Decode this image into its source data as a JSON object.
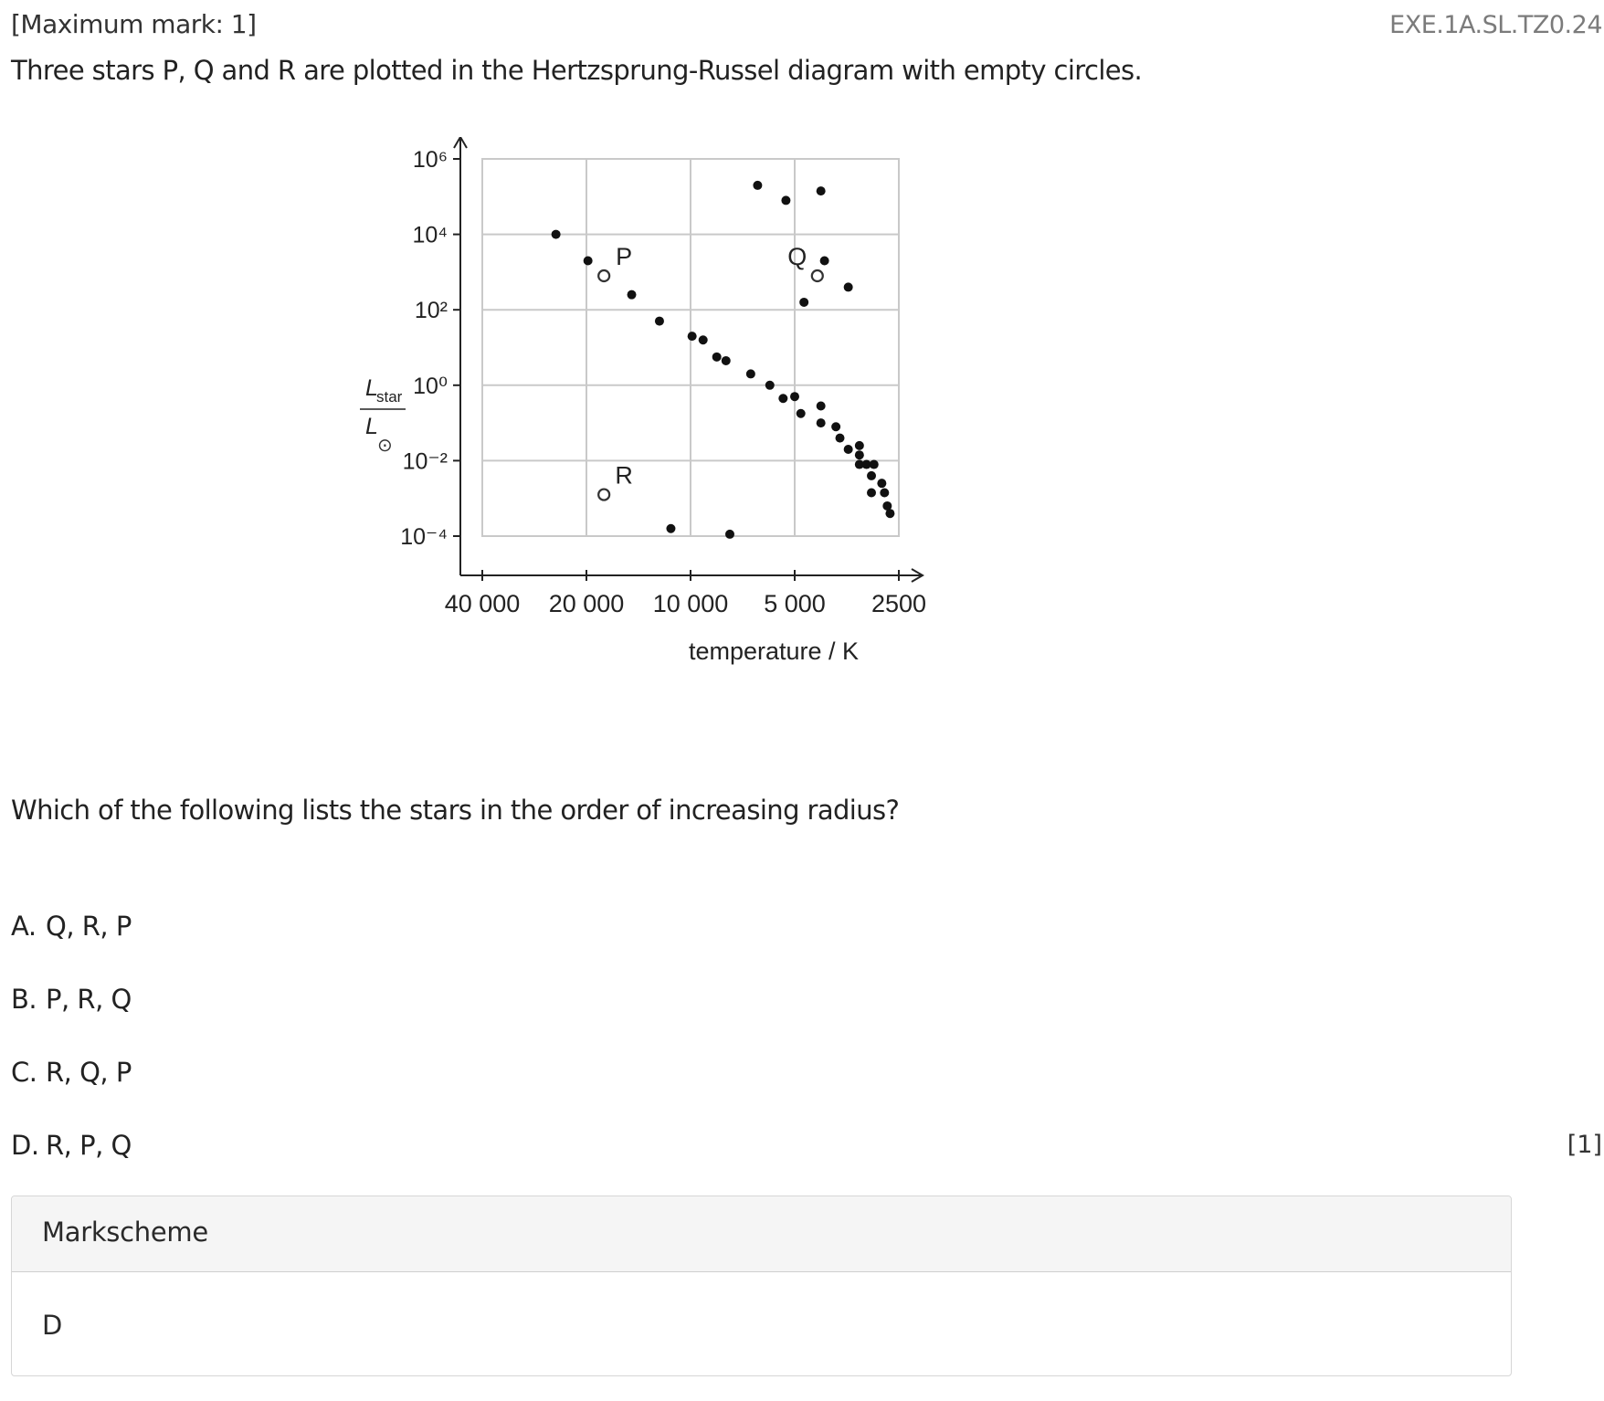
{
  "header": {
    "max_mark": "[Maximum mark: 1]",
    "code": "EXE.1A.SL.TZ0.24"
  },
  "stem": "Three stars P, Q and R are plotted in the Hertzsprung-Russel diagram with empty circles.",
  "question": "Which of the following lists the stars in the order of increasing radius?",
  "options": [
    {
      "letter": "A.",
      "text": "Q, R, P"
    },
    {
      "letter": "B.",
      "text": "P, R, Q"
    },
    {
      "letter": "C.",
      "text": "R, Q, P"
    },
    {
      "letter": "D.",
      "text": "R, P, Q"
    }
  ],
  "marks": "[1]",
  "markscheme": {
    "title": "Markscheme",
    "answer": "D"
  },
  "chart_data": {
    "type": "scatter",
    "xlabel": "temperature / K",
    "ylabel": {
      "numerator": "L",
      "numerator_sub": "star",
      "denominator": "L",
      "denominator_sub": "⊙"
    },
    "x_scale": "log, decreasing",
    "y_scale": "log",
    "x_ticks": [
      {
        "value": 40000,
        "label": "40 000"
      },
      {
        "value": 20000,
        "label": "20 000"
      },
      {
        "value": 10000,
        "label": "10 000"
      },
      {
        "value": 5000,
        "label": "5 000"
      },
      {
        "value": 2500,
        "label": "2500"
      }
    ],
    "y_ticks": [
      {
        "exp": 6,
        "label": "10⁶"
      },
      {
        "exp": 4,
        "label": "10⁴"
      },
      {
        "exp": 2,
        "label": "10²"
      },
      {
        "exp": 0,
        "label": "10⁰"
      },
      {
        "exp": -2,
        "label": "10⁻²"
      },
      {
        "exp": -4,
        "label": "10⁻⁴"
      }
    ],
    "grid": true,
    "stars_labeled": [
      {
        "name": "P",
        "temperature": 17800,
        "log_luminosity": 2.9
      },
      {
        "name": "Q",
        "temperature": 4300,
        "log_luminosity": 2.9
      },
      {
        "name": "R",
        "temperature": 17800,
        "log_luminosity": -2.9
      }
    ],
    "stars": [
      {
        "temperature": 24500,
        "log_luminosity": 4.0
      },
      {
        "temperature": 19800,
        "log_luminosity": 3.3
      },
      {
        "temperature": 14800,
        "log_luminosity": 2.4
      },
      {
        "temperature": 12300,
        "log_luminosity": 1.7
      },
      {
        "temperature": 9900,
        "log_luminosity": 1.3
      },
      {
        "temperature": 9200,
        "log_luminosity": 1.2
      },
      {
        "temperature": 8400,
        "log_luminosity": 0.75
      },
      {
        "temperature": 7900,
        "log_luminosity": 0.65
      },
      {
        "temperature": 6700,
        "log_luminosity": 0.3
      },
      {
        "temperature": 5900,
        "log_luminosity": 0.0
      },
      {
        "temperature": 5400,
        "log_luminosity": -0.35
      },
      {
        "temperature": 5000,
        "log_luminosity": -0.3
      },
      {
        "temperature": 4800,
        "log_luminosity": -0.75
      },
      {
        "temperature": 4200,
        "log_luminosity": -0.55
      },
      {
        "temperature": 4200,
        "log_luminosity": -1.0
      },
      {
        "temperature": 3800,
        "log_luminosity": -1.1
      },
      {
        "temperature": 3700,
        "log_luminosity": -1.4
      },
      {
        "temperature": 3500,
        "log_luminosity": -1.7
      },
      {
        "temperature": 3250,
        "log_luminosity": -1.6
      },
      {
        "temperature": 3250,
        "log_luminosity": -1.85
      },
      {
        "temperature": 3250,
        "log_luminosity": -2.1
      },
      {
        "temperature": 3100,
        "log_luminosity": -2.1
      },
      {
        "temperature": 2950,
        "log_luminosity": -2.1
      },
      {
        "temperature": 3000,
        "log_luminosity": -2.4
      },
      {
        "temperature": 3000,
        "log_luminosity": -2.85
      },
      {
        "temperature": 2800,
        "log_luminosity": -2.6
      },
      {
        "temperature": 2750,
        "log_luminosity": -2.85
      },
      {
        "temperature": 2700,
        "log_luminosity": -3.2
      },
      {
        "temperature": 2650,
        "log_luminosity": -3.4
      },
      {
        "temperature": 11400,
        "log_luminosity": -3.8
      },
      {
        "temperature": 7700,
        "log_luminosity": -3.95
      },
      {
        "temperature": 6400,
        "log_luminosity": 5.3
      },
      {
        "temperature": 5300,
        "log_luminosity": 4.9
      },
      {
        "temperature": 4200,
        "log_luminosity": 5.15
      },
      {
        "temperature": 4100,
        "log_luminosity": 3.3
      },
      {
        "temperature": 4700,
        "log_luminosity": 2.2
      },
      {
        "temperature": 3500,
        "log_luminosity": 2.6
      }
    ]
  }
}
